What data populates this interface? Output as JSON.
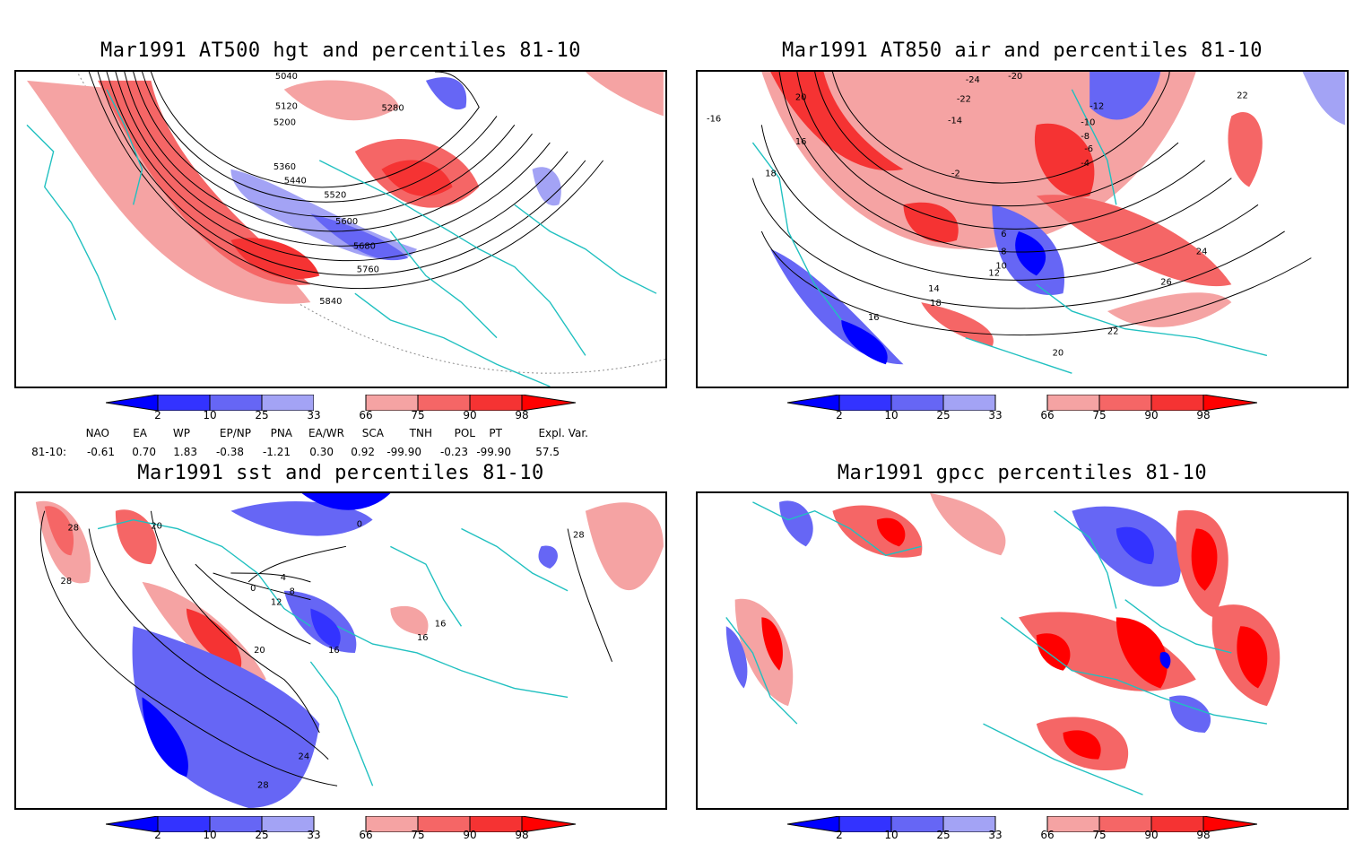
{
  "panels": [
    {
      "id": "p1",
      "title": "Mar1991 AT500 hgt and percentiles 81-10",
      "contour_labels": [
        "5040",
        "5120",
        "5200",
        "5280",
        "5360",
        "5440",
        "5520",
        "5600",
        "5680",
        "5760",
        "5840"
      ]
    },
    {
      "id": "p2",
      "title": "Mar1991 AT850 air and percentiles 81-10",
      "contour_labels": [
        "-24",
        "-20",
        "-22",
        "-16",
        "-14",
        "-12",
        "-10",
        "-8",
        "-6",
        "-4",
        "-2",
        "16",
        "18",
        "20",
        "22",
        "24",
        "26",
        "6",
        "8",
        "10",
        "12",
        "14",
        "16",
        "18",
        "20",
        "22"
      ]
    },
    {
      "id": "p3",
      "title": "Mar1991 sst and percentiles 81-10",
      "contour_labels": [
        "28",
        "20",
        "28",
        "0",
        "4",
        "8",
        "12",
        "16",
        "20",
        "24",
        "28",
        "16",
        "16",
        "0",
        "28"
      ]
    },
    {
      "id": "p4",
      "title": "Mar1991 gpcc percentiles 81-10",
      "contour_labels": []
    }
  ],
  "colorbar": {
    "labels": [
      "2",
      "10",
      "25",
      "33",
      "66",
      "75",
      "90",
      "98"
    ],
    "colors": [
      "#0000ff",
      "#3333ff",
      "#6666f5",
      "#a3a3f5",
      "#ffffff",
      "#f5a3a3",
      "#f56666",
      "#f53333",
      "#ff0000"
    ]
  },
  "indices": {
    "headers": [
      "NAO",
      "EA",
      "WP",
      "EP/NP",
      "PNA",
      "EA/WR",
      "SCA",
      "TNH",
      "POL",
      "PT",
      "Expl. Var."
    ],
    "row_label": "81-10:",
    "values": [
      "-0.61",
      "0.70",
      "1.83",
      "-0.38",
      "-1.21",
      "0.30",
      "0.92",
      "-99.90",
      "-0.23",
      "-99.90",
      "57.5"
    ]
  },
  "colors": {
    "coast": "#20c0c0",
    "warm": "#f04040",
    "cold": "#3030f0",
    "frame": "#000000"
  }
}
